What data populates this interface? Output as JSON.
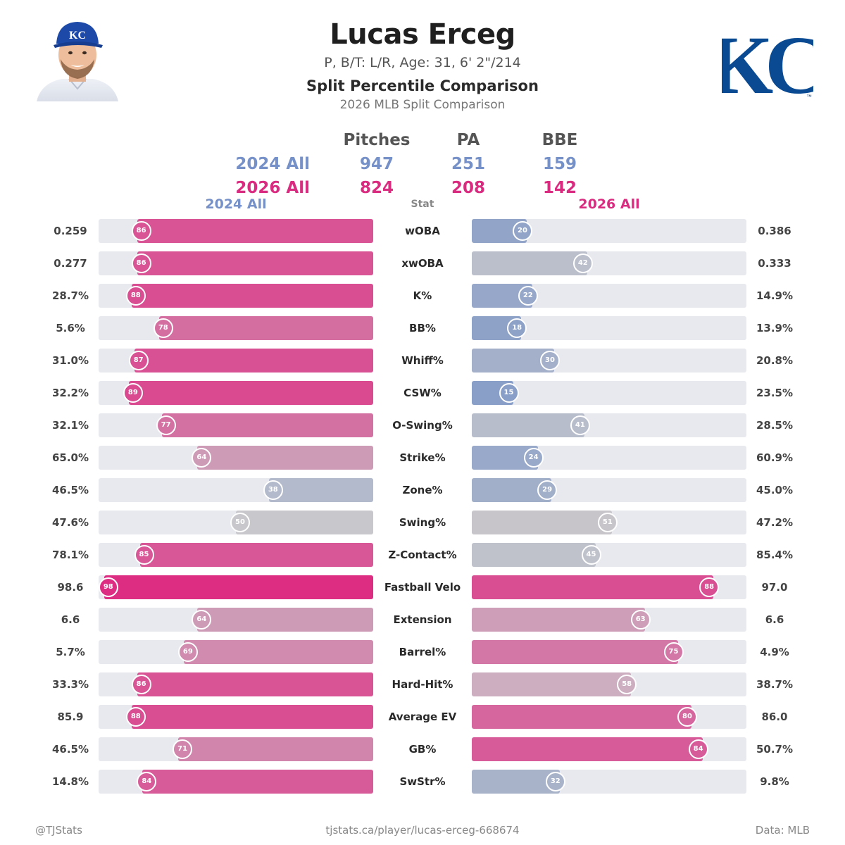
{
  "header": {
    "player_name": "Lucas Erceg",
    "player_info": "P, B/T: L/R, Age: 31, 6' 2\"/214",
    "title": "Split Percentile Comparison",
    "subtitle": "2026 MLB Split Comparison",
    "team_logo_text": "KC",
    "headshot_cap_text": "KC"
  },
  "summary": {
    "headers": [
      "Pitches",
      "PA",
      "BBE"
    ],
    "rows": [
      {
        "label": "2024 All",
        "values": [
          "947",
          "251",
          "159"
        ]
      },
      {
        "label": "2026 All",
        "values": [
          "824",
          "208",
          "142"
        ]
      }
    ]
  },
  "columns": {
    "left": "2024 All",
    "middle": "Stat",
    "right": "2026 All"
  },
  "colors": {
    "left_series": "#7690c8",
    "right_series": "#d92b7f",
    "track": "#e8e9ef"
  },
  "chart_data": {
    "type": "bar",
    "title": "Split Percentile Comparison",
    "series": [
      {
        "name": "2024 All",
        "percentiles": [
          86,
          86,
          88,
          78,
          87,
          89,
          77,
          64,
          38,
          50,
          85,
          98,
          64,
          69,
          86,
          88,
          71,
          84
        ],
        "values": [
          "0.259",
          "0.277",
          "28.7%",
          "5.6%",
          "31.0%",
          "32.2%",
          "32.1%",
          "65.0%",
          "46.5%",
          "47.6%",
          "78.1%",
          "98.6",
          "6.6",
          "5.7%",
          "33.3%",
          "85.9",
          "46.5%",
          "14.8%"
        ]
      },
      {
        "name": "2026 All",
        "percentiles": [
          20,
          42,
          22,
          18,
          30,
          15,
          41,
          24,
          29,
          51,
          45,
          88,
          63,
          75,
          58,
          80,
          84,
          32
        ],
        "values": [
          "0.386",
          "0.333",
          "14.9%",
          "13.9%",
          "20.8%",
          "23.5%",
          "28.5%",
          "60.9%",
          "45.0%",
          "47.2%",
          "85.4%",
          "97.0",
          "6.6",
          "4.9%",
          "38.7%",
          "86.0",
          "50.7%",
          "9.8%"
        ]
      }
    ],
    "categories": [
      "wOBA",
      "xwOBA",
      "K%",
      "BB%",
      "Whiff%",
      "CSW%",
      "O-Swing%",
      "Strike%",
      "Zone%",
      "Swing%",
      "Z-Contact%",
      "Fastball Velo",
      "Extension",
      "Barrel%",
      "Hard-Hit%",
      "Average EV",
      "GB%",
      "SwStr%"
    ],
    "xlim": [
      0,
      100
    ]
  },
  "footer": {
    "left": "@TJStats",
    "center": "tjstats.ca/player/lucas-erceg-668674",
    "right": "Data: MLB"
  }
}
